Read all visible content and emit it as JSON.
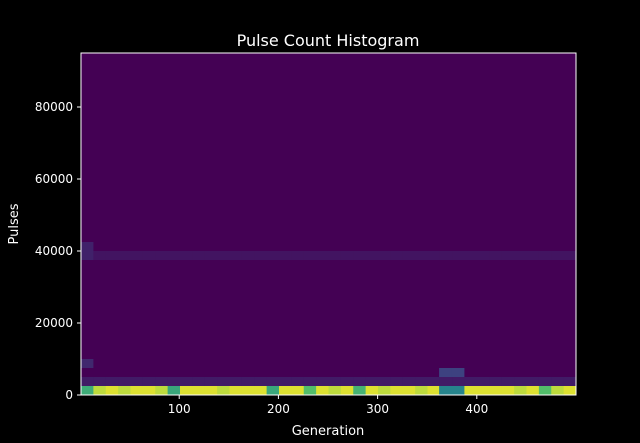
{
  "chart_data": {
    "type": "heatmap",
    "title": "Pulse Count Histogram",
    "xlabel": "Generation",
    "ylabel": "Pulses",
    "xlim": [
      1,
      500
    ],
    "ylim": [
      0,
      95000
    ],
    "x_ticks": [
      100,
      200,
      300,
      400
    ],
    "y_ticks": [
      0,
      20000,
      40000,
      60000,
      80000
    ],
    "bin_width_x": 12.5,
    "bin_width_y": 2500,
    "colormap": "viridis",
    "background_color": "#440154",
    "features": [
      {
        "name": "bottom-row",
        "x_range": [
          1,
          500
        ],
        "y_range": [
          0,
          2500
        ],
        "intensity": [
          0.62,
          0.9,
          0.95,
          0.9,
          0.95,
          0.95,
          0.9,
          0.6,
          0.95,
          0.95,
          0.95,
          0.9,
          0.95,
          0.95,
          0.95,
          0.6,
          0.95,
          0.95,
          0.7,
          0.95,
          0.9,
          0.95,
          0.65,
          0.95,
          0.9,
          0.95,
          0.95,
          0.9,
          0.95,
          0.5,
          0.95,
          0.95,
          0.95,
          0.95,
          0.95,
          0.9,
          0.95,
          0.7,
          0.9,
          0.95
        ]
      },
      {
        "name": "peak-cluster",
        "x_range": [
          362,
          387
        ],
        "y_range": [
          0,
          5000
        ],
        "intensity": [
          0.45,
          0.45
        ]
      },
      {
        "name": "peak-cluster-upper",
        "x_range": [
          362,
          387
        ],
        "y_range": [
          5000,
          7500
        ],
        "intensity": [
          0.2,
          0.2
        ]
      },
      {
        "name": "band-40000",
        "x_range": [
          1,
          500
        ],
        "y_range": [
          37500,
          40000
        ],
        "intensity": [
          0.06
        ]
      },
      {
        "name": "left-edge-40000",
        "x_range": [
          1,
          13
        ],
        "y_range": [
          37500,
          42500
        ],
        "intensity": [
          0.1
        ]
      },
      {
        "name": "left-edge-8000",
        "x_range": [
          1,
          13
        ],
        "y_range": [
          7500,
          10000
        ],
        "intensity": [
          0.12
        ]
      },
      {
        "name": "scatter-low",
        "x_range": [
          1,
          500
        ],
        "y_range": [
          2500,
          5000
        ],
        "intensity": [
          0.08
        ]
      }
    ]
  }
}
